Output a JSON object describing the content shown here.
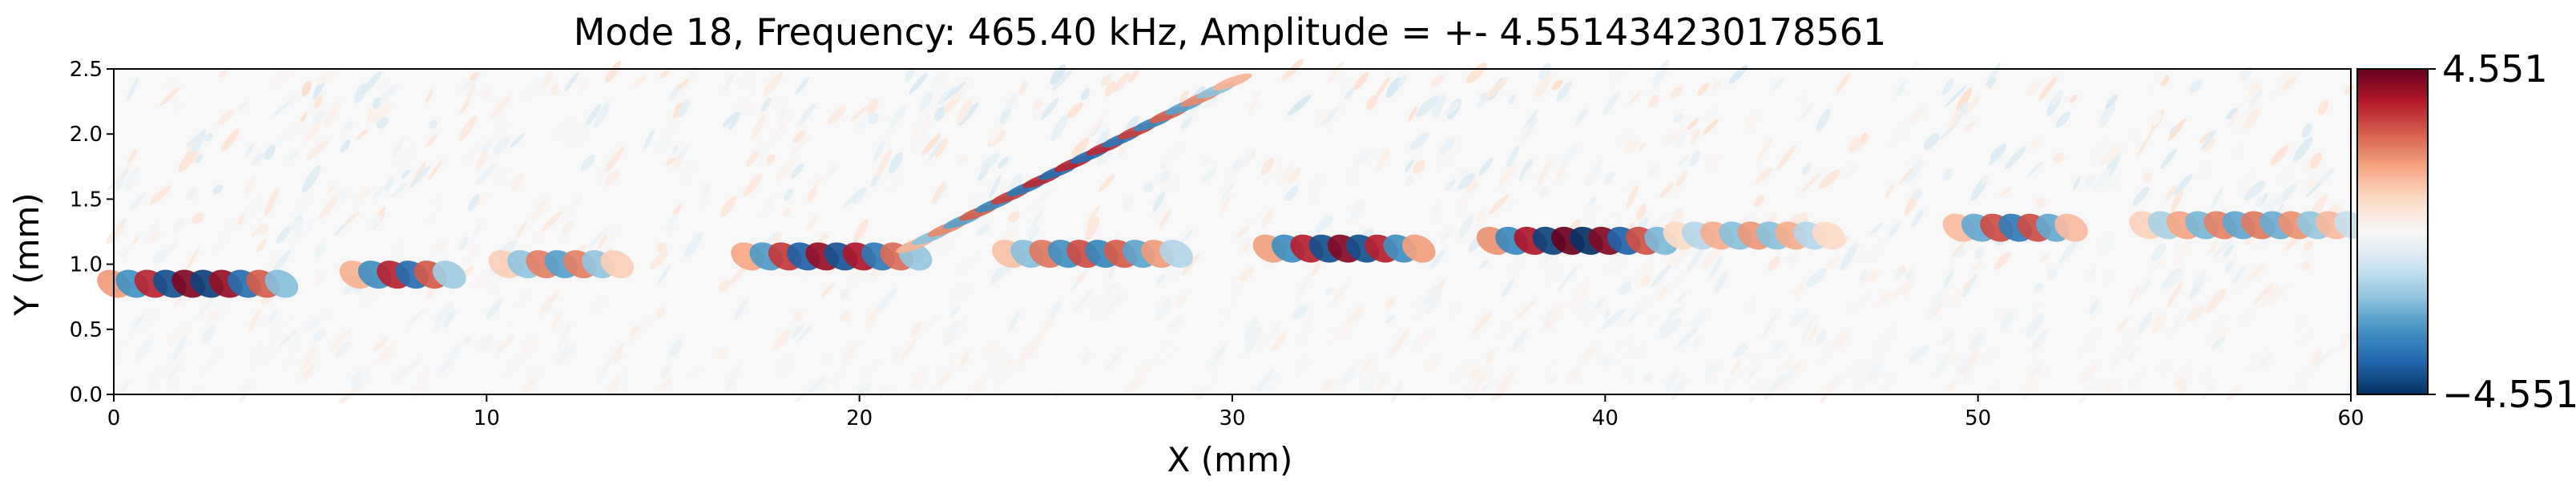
{
  "chart_data": {
    "type": "heatmap",
    "title": "Mode 18, Frequency: 465.40 kHz, Amplitude = +- 4.551434230178561",
    "xlabel": "X (mm)",
    "ylabel": "Y (mm)",
    "xlim": [
      0,
      60
    ],
    "ylim": [
      0,
      2.5
    ],
    "x_ticks": [
      "0",
      "10",
      "20",
      "30",
      "40",
      "50",
      "60"
    ],
    "y_ticks": [
      "0.0",
      "0.5",
      "1.0",
      "1.5",
      "2.0",
      "2.5"
    ],
    "colorbar": {
      "colormap": "RdBu_r",
      "vmin": -4.551,
      "vmax": 4.551,
      "tick_labels": [
        "4.551",
        "−4.551"
      ],
      "colors": [
        "#67001f",
        "#b2182b",
        "#d6604d",
        "#f4a582",
        "#fddbc7",
        "#f7f7f7",
        "#d1e5f0",
        "#92c5de",
        "#4393c3",
        "#2166ac",
        "#053061"
      ]
    },
    "grid": false,
    "wave_packets": [
      {
        "x_start": 0.0,
        "x_end": 4.5,
        "y": 0.85,
        "peak_amplitude": 4.3
      },
      {
        "x_start": 6.5,
        "x_end": 9.0,
        "y": 0.92,
        "peak_amplitude": 3.6
      },
      {
        "x_start": 10.5,
        "x_end": 13.5,
        "y": 1.0,
        "peak_amplitude": 2.5
      },
      {
        "x_start": 17.0,
        "x_end": 21.5,
        "y": 1.06,
        "peak_amplitude": 4.0
      },
      {
        "x_start": 21.5,
        "x_end": 30.0,
        "y_start": 1.15,
        "y_end": 2.4,
        "peak_amplitude": 3.5
      },
      {
        "x_start": 24.0,
        "x_end": 28.5,
        "y": 1.08,
        "peak_amplitude": 3.0
      },
      {
        "x_start": 31.0,
        "x_end": 35.0,
        "y": 1.12,
        "peak_amplitude": 4.2
      },
      {
        "x_start": 37.0,
        "x_end": 41.5,
        "y": 1.18,
        "peak_amplitude": 4.55
      },
      {
        "x_start": 42.0,
        "x_end": 46.0,
        "y": 1.22,
        "peak_amplitude": 2.0
      },
      {
        "x_start": 49.5,
        "x_end": 52.5,
        "y": 1.28,
        "peak_amplitude": 3.2
      },
      {
        "x_start": 54.5,
        "x_end": 60.0,
        "y": 1.3,
        "peak_amplitude": 2.4
      }
    ]
  }
}
